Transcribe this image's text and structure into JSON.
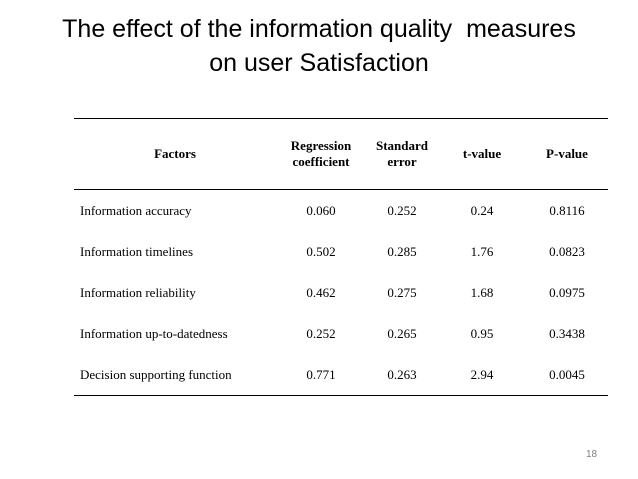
{
  "title": {
    "line1": "The effect of the information quality  measures",
    "line2": "on user Satisfaction"
  },
  "table": {
    "headers": {
      "factors": "Factors",
      "regression_line1": "Regression",
      "regression_line2": "coefficient",
      "standard_line1": "Standard",
      "standard_line2": "error",
      "t_value": "t-value",
      "p_value": "P-value"
    },
    "rows": [
      {
        "factor": "Information accuracy",
        "regression": "0.060",
        "std_error": "0.252",
        "t_value": "0.24",
        "p_value": "0.8116"
      },
      {
        "factor": "Information timelines",
        "regression": "0.502",
        "std_error": "0.285",
        "t_value": "1.76",
        "p_value": "0.0823"
      },
      {
        "factor": "Information reliability",
        "regression": "0.462",
        "std_error": "0.275",
        "t_value": "1.68",
        "p_value": "0.0975"
      },
      {
        "factor": "Information up-to-datedness",
        "regression": "0.252",
        "std_error": "0.265",
        "t_value": "0.95",
        "p_value": "0.3438"
      },
      {
        "factor": "Decision supporting function",
        "regression": "0.771",
        "std_error": "0.263",
        "t_value": "2.94",
        "p_value": "0.0045"
      }
    ]
  },
  "page_number": "18"
}
